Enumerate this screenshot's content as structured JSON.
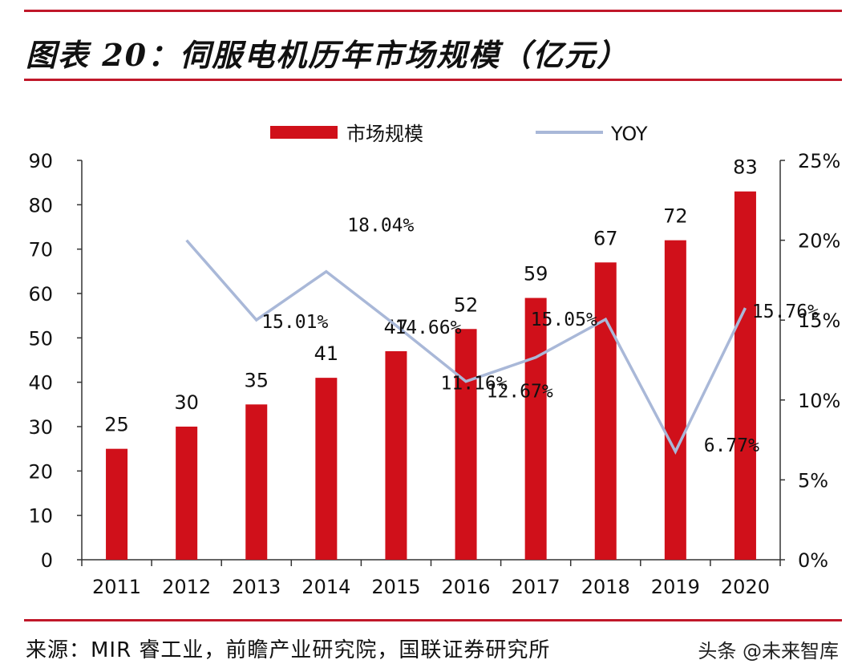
{
  "header": {
    "title": "图表 20：伺服电机历年市场规模（亿元）"
  },
  "footer": {
    "source": "来源：MIR 睿工业，前瞻产业研究院，国联证券研究所",
    "watermark": "头条 @未来智库"
  },
  "colors": {
    "accent": "#c0182a",
    "bar": "#d0101a",
    "line": "#a9b8d8"
  },
  "chart_data": {
    "type": "bar",
    "categories": [
      "2011",
      "2012",
      "2013",
      "2014",
      "2015",
      "2016",
      "2017",
      "2018",
      "2019",
      "2020"
    ],
    "series": [
      {
        "name": "市场规模",
        "type": "bar",
        "axis": "left",
        "values": [
          25,
          30,
          35,
          41,
          47,
          52,
          59,
          67,
          72,
          83
        ],
        "labels": [
          "25",
          "30",
          "35",
          "41",
          "47",
          "52",
          "59",
          "67",
          "72",
          "83"
        ]
      },
      {
        "name": "YOY",
        "type": "line",
        "axis": "right",
        "values": [
          null,
          20.0,
          15.01,
          18.04,
          14.66,
          11.16,
          12.67,
          15.05,
          6.77,
          15.76
        ],
        "labels": [
          "",
          "",
          "15.01%",
          "18.04%",
          "14.66%",
          "11.16%",
          "12.67%",
          "15.05%",
          "6.77%",
          "15.76%"
        ]
      }
    ],
    "y_left": {
      "ylim": [
        0,
        90
      ],
      "ticks": [
        "0",
        "10",
        "20",
        "30",
        "40",
        "50",
        "60",
        "70",
        "80",
        "90"
      ]
    },
    "y_right": {
      "ylim": [
        0,
        25
      ],
      "ticks": [
        "0%",
        "5%",
        "10%",
        "15%",
        "20%",
        "25%"
      ]
    },
    "legend": {
      "position": "top-center"
    },
    "grid": false
  }
}
